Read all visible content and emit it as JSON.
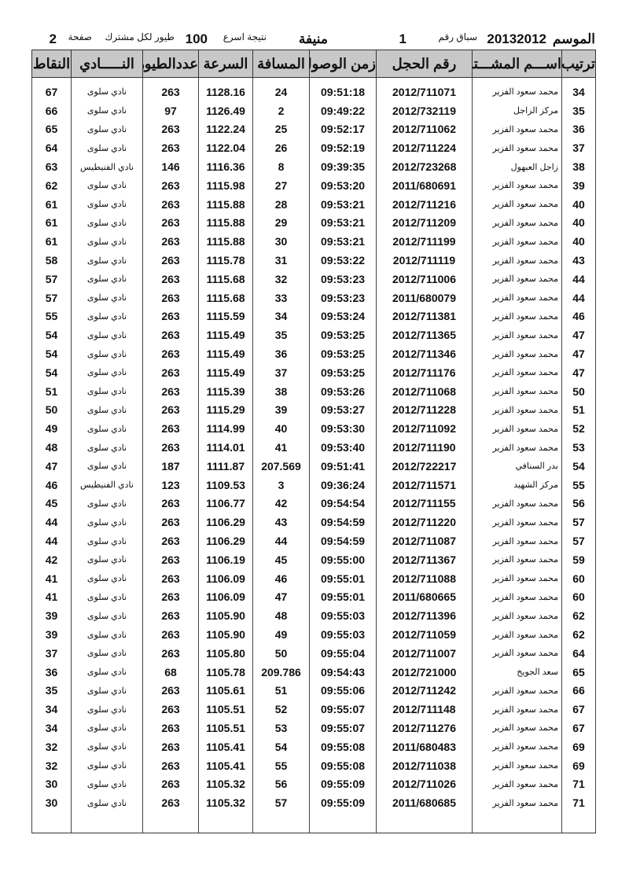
{
  "header": {
    "season_label": "الموسم",
    "season": "20132012",
    "race_label": "سباق رقم",
    "race_no": "1",
    "location": "منيفة",
    "result_label": "نتيجة اسرع",
    "count": "100",
    "per_label": "طيور لكل مشترك",
    "page_label": "صفحة",
    "page": "2"
  },
  "columns": [
    "ترتيب",
    "اســـم المشـــترك",
    "رقم الحجل",
    "زمن الوصول",
    "المسافة",
    "السرعة",
    "عددالطيور",
    "النـــــادي",
    "النقاط"
  ],
  "rows": [
    [
      "34",
      "محمد سعود الفزير",
      "2012/711071",
      "09:51:18",
      "24",
      "1128.16",
      "263",
      "نادي سلوى",
      "67"
    ],
    [
      "35",
      "مركز الزاجل",
      "2012/732119",
      "09:49:22",
      "2",
      "1126.49",
      "97",
      "نادي سلوى",
      "66"
    ],
    [
      "36",
      "محمد سعود الفزير",
      "2012/711062",
      "09:52:17",
      "25",
      "1122.24",
      "263",
      "نادي سلوى",
      "65"
    ],
    [
      "37",
      "محمد سعود الفزير",
      "2012/711224",
      "09:52:19",
      "26",
      "1122.04",
      "263",
      "نادي سلوى",
      "64"
    ],
    [
      "38",
      "زاجل العبهول",
      "2012/723268",
      "09:39:35",
      "8",
      "1116.36",
      "146",
      "نادي الفنيطيس",
      "63"
    ],
    [
      "39",
      "محمد سعود الفزير",
      "2011/680691",
      "09:53:20",
      "27",
      "1115.98",
      "263",
      "نادي سلوى",
      "62"
    ],
    [
      "40",
      "محمد سعود الفزير",
      "2012/711216",
      "09:53:21",
      "28",
      "1115.88",
      "263",
      "نادي سلوى",
      "61"
    ],
    [
      "40",
      "محمد سعود الفزير",
      "2012/711209",
      "09:53:21",
      "29",
      "1115.88",
      "263",
      "نادي سلوى",
      "61"
    ],
    [
      "40",
      "محمد سعود الفزير",
      "2012/711199",
      "09:53:21",
      "30",
      "1115.88",
      "263",
      "نادي سلوى",
      "61"
    ],
    [
      "43",
      "محمد سعود الفزير",
      "2012/711119",
      "09:53:22",
      "31",
      "1115.78",
      "263",
      "نادي سلوى",
      "58"
    ],
    [
      "44",
      "محمد سعود الفزير",
      "2012/711006",
      "09:53:23",
      "32",
      "1115.68",
      "263",
      "نادي سلوى",
      "57"
    ],
    [
      "44",
      "محمد سعود الفزير",
      "2011/680079",
      "09:53:23",
      "33",
      "1115.68",
      "263",
      "نادي سلوى",
      "57"
    ],
    [
      "46",
      "محمد سعود الفزير",
      "2012/711381",
      "09:53:24",
      "34",
      "1115.59",
      "263",
      "نادي سلوى",
      "55"
    ],
    [
      "47",
      "محمد سعود الفزير",
      "2012/711365",
      "09:53:25",
      "35",
      "1115.49",
      "263",
      "نادي سلوى",
      "54"
    ],
    [
      "47",
      "محمد سعود الفزير",
      "2012/711346",
      "09:53:25",
      "36",
      "1115.49",
      "263",
      "نادي سلوى",
      "54"
    ],
    [
      "47",
      "محمد سعود الفزير",
      "2012/711176",
      "09:53:25",
      "37",
      "1115.49",
      "263",
      "نادي سلوى",
      "54"
    ],
    [
      "50",
      "محمد سعود الفزير",
      "2012/711068",
      "09:53:26",
      "38",
      "1115.39",
      "263",
      "نادي سلوى",
      "51"
    ],
    [
      "51",
      "محمد سعود الفزير",
      "2012/711228",
      "09:53:27",
      "39",
      "1115.29",
      "263",
      "نادي سلوى",
      "50"
    ],
    [
      "52",
      "محمد سعود الفزير",
      "2012/711092",
      "09:53:30",
      "40",
      "1114.99",
      "263",
      "نادي سلوى",
      "49"
    ],
    [
      "53",
      "محمد سعود الفزير",
      "2012/711190",
      "09:53:40",
      "41",
      "1114.01",
      "263",
      "نادي سلوى",
      "48"
    ],
    [
      "54",
      "بدر السنافي",
      "2012/722217",
      "09:51:41",
      "207.569",
      "1111.87",
      "187",
      "نادي سلوى",
      "47"
    ],
    [
      "55",
      "مركز الشهيد",
      "2012/711571",
      "09:36:24",
      "3",
      "1109.53",
      "123",
      "نادي الفنيطيس",
      "46"
    ],
    [
      "56",
      "محمد سعود الفزير",
      "2012/711155",
      "09:54:54",
      "42",
      "1106.77",
      "263",
      "نادي سلوى",
      "45"
    ],
    [
      "57",
      "محمد سعود الفزير",
      "2012/711220",
      "09:54:59",
      "43",
      "1106.29",
      "263",
      "نادي سلوى",
      "44"
    ],
    [
      "57",
      "محمد سعود الفزير",
      "2012/711087",
      "09:54:59",
      "44",
      "1106.29",
      "263",
      "نادي سلوى",
      "44"
    ],
    [
      "59",
      "محمد سعود الفزير",
      "2012/711367",
      "09:55:00",
      "45",
      "1106.19",
      "263",
      "نادي سلوى",
      "42"
    ],
    [
      "60",
      "محمد سعود الفزير",
      "2012/711088",
      "09:55:01",
      "46",
      "1106.09",
      "263",
      "نادي سلوى",
      "41"
    ],
    [
      "60",
      "محمد سعود الفزير",
      "2011/680665",
      "09:55:01",
      "47",
      "1106.09",
      "263",
      "نادي سلوى",
      "41"
    ],
    [
      "62",
      "محمد سعود الفزير",
      "2012/711396",
      "09:55:03",
      "48",
      "1105.90",
      "263",
      "نادي سلوى",
      "39"
    ],
    [
      "62",
      "محمد سعود الفزير",
      "2012/711059",
      "09:55:03",
      "49",
      "1105.90",
      "263",
      "نادي سلوى",
      "39"
    ],
    [
      "64",
      "محمد سعود الفزير",
      "2012/711007",
      "09:55:04",
      "50",
      "1105.80",
      "263",
      "نادي سلوى",
      "37"
    ],
    [
      "65",
      "سعد الجويخ",
      "2012/721000",
      "09:54:43",
      "209.786",
      "1105.78",
      "68",
      "نادي سلوى",
      "36"
    ],
    [
      "66",
      "محمد سعود الفزير",
      "2012/711242",
      "09:55:06",
      "51",
      "1105.61",
      "263",
      "نادي سلوى",
      "35"
    ],
    [
      "67",
      "محمد سعود الفزير",
      "2012/711148",
      "09:55:07",
      "52",
      "1105.51",
      "263",
      "نادي سلوى",
      "34"
    ],
    [
      "67",
      "محمد سعود الفزير",
      "2012/711276",
      "09:55:07",
      "53",
      "1105.51",
      "263",
      "نادي سلوى",
      "34"
    ],
    [
      "69",
      "محمد سعود الفزير",
      "2011/680483",
      "09:55:08",
      "54",
      "1105.41",
      "263",
      "نادي سلوى",
      "32"
    ],
    [
      "69",
      "محمد سعود الفزير",
      "2012/711038",
      "09:55:08",
      "55",
      "1105.41",
      "263",
      "نادي سلوى",
      "32"
    ],
    [
      "71",
      "محمد سعود الفزير",
      "2012/711026",
      "09:55:09",
      "56",
      "1105.32",
      "263",
      "نادي سلوى",
      "30"
    ],
    [
      "71",
      "محمد سعود الفزير",
      "2011/680685",
      "09:55:09",
      "57",
      "1105.32",
      "263",
      "نادي سلوى",
      "30"
    ]
  ]
}
